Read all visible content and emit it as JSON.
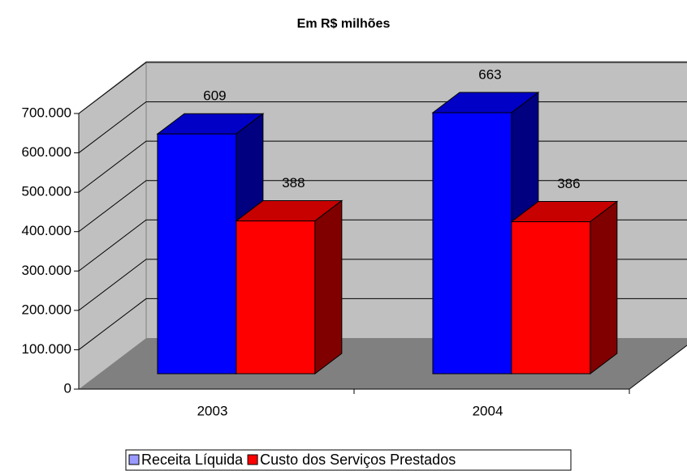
{
  "chart_data": {
    "type": "bar3d",
    "title": "Em R$ milhões",
    "categories": [
      "2003",
      "2004"
    ],
    "series": [
      {
        "name": "Receita Líquida",
        "color": "#0000ff",
        "values": [
          609000,
          663000
        ],
        "value_labels": [
          "609",
          "663"
        ]
      },
      {
        "name": "Custo dos Serviços Prestados",
        "color": "#ff0000",
        "values": [
          388000,
          386000
        ],
        "value_labels": [
          "388",
          "386"
        ]
      }
    ],
    "ylim": [
      0,
      700000
    ],
    "yticks": [
      0,
      {
        "value": 100000,
        "label": "100.000"
      },
      {
        "value": 200000,
        "label": "200.000"
      },
      {
        "value": 300000,
        "label": "300.000"
      },
      {
        "value": 400000,
        "label": "400.000"
      },
      {
        "value": 500000,
        "label": "500.000"
      },
      {
        "value": 600000,
        "label": "600.000"
      },
      {
        "value": 700000,
        "label": "700.000"
      }
    ],
    "grid": true,
    "legend": "bottom"
  }
}
